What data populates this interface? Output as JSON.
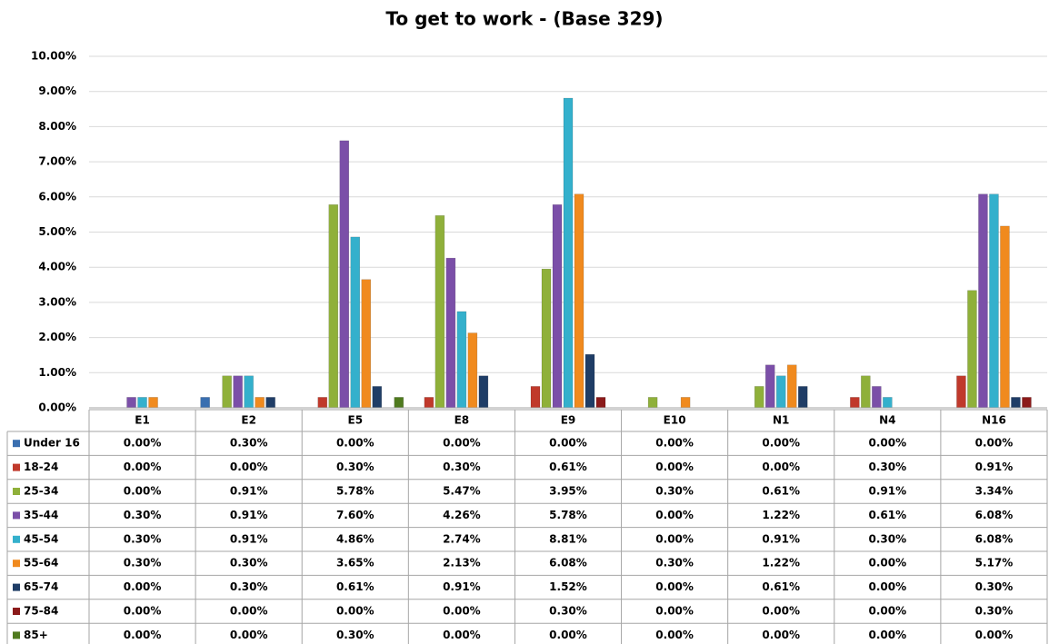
{
  "chart_data": {
    "type": "bar",
    "title": "To get to work - (Base 329)",
    "categories": [
      "E1",
      "E2",
      "E5",
      "E8",
      "E9",
      "E10",
      "N1",
      "N4",
      "N16"
    ],
    "ylim": [
      0,
      10
    ],
    "yticks": [
      {
        "value": 0,
        "label": "0.00%"
      },
      {
        "value": 1,
        "label": "1.00%"
      },
      {
        "value": 2,
        "label": "2.00%"
      },
      {
        "value": 3,
        "label": "3.00%"
      },
      {
        "value": 4,
        "label": "4.00%"
      },
      {
        "value": 5,
        "label": "5.00%"
      },
      {
        "value": 6,
        "label": "6.00%"
      },
      {
        "value": 7,
        "label": "7.00%"
      },
      {
        "value": 8,
        "label": "8.00%"
      },
      {
        "value": 9,
        "label": "9.00%"
      },
      {
        "value": 10,
        "label": "10.00%"
      }
    ],
    "grid": true,
    "series": [
      {
        "name": "Under 16",
        "color": "#3a6fb0",
        "values": [
          0,
          0.3,
          0,
          0,
          0,
          0,
          0,
          0,
          0
        ],
        "value_labels": [
          "0.00%",
          "0.30%",
          "0.00%",
          "0.00%",
          "0.00%",
          "0.00%",
          "0.00%",
          "0.00%",
          "0.00%"
        ]
      },
      {
        "name": "18-24",
        "color": "#c0392b",
        "values": [
          0,
          0,
          0.3,
          0.3,
          0.61,
          0,
          0,
          0.3,
          0.91
        ],
        "value_labels": [
          "0.00%",
          "0.00%",
          "0.30%",
          "0.30%",
          "0.61%",
          "0.00%",
          "0.00%",
          "0.30%",
          "0.91%"
        ]
      },
      {
        "name": "25-34",
        "color": "#8fb03a",
        "values": [
          0,
          0.91,
          5.78,
          5.47,
          3.95,
          0.3,
          0.61,
          0.91,
          3.34
        ],
        "value_labels": [
          "0.00%",
          "0.91%",
          "5.78%",
          "5.47%",
          "3.95%",
          "0.30%",
          "0.61%",
          "0.91%",
          "3.34%"
        ]
      },
      {
        "name": "35-44",
        "color": "#7b4fa8",
        "values": [
          0.3,
          0.91,
          7.6,
          4.26,
          5.78,
          0,
          1.22,
          0.61,
          6.08
        ],
        "value_labels": [
          "0.30%",
          "0.91%",
          "7.60%",
          "4.26%",
          "5.78%",
          "0.00%",
          "1.22%",
          "0.61%",
          "6.08%"
        ]
      },
      {
        "name": "45-54",
        "color": "#34b0cc",
        "values": [
          0.3,
          0.91,
          4.86,
          2.74,
          8.81,
          0,
          0.91,
          0.3,
          6.08
        ],
        "value_labels": [
          "0.30%",
          "0.91%",
          "4.86%",
          "2.74%",
          "8.81%",
          "0.00%",
          "0.91%",
          "0.30%",
          "6.08%"
        ]
      },
      {
        "name": "55-64",
        "color": "#f08a1e",
        "values": [
          0.3,
          0.3,
          3.65,
          2.13,
          6.08,
          0.3,
          1.22,
          0,
          5.17
        ],
        "value_labels": [
          "0.30%",
          "0.30%",
          "3.65%",
          "2.13%",
          "6.08%",
          "0.30%",
          "1.22%",
          "0.00%",
          "5.17%"
        ]
      },
      {
        "name": "65-74",
        "color": "#1f3d66",
        "values": [
          0,
          0.3,
          0.61,
          0.91,
          1.52,
          0,
          0.61,
          0,
          0.3
        ],
        "value_labels": [
          "0.00%",
          "0.30%",
          "0.61%",
          "0.91%",
          "1.52%",
          "0.00%",
          "0.61%",
          "0.00%",
          "0.30%"
        ]
      },
      {
        "name": "75-84",
        "color": "#8b1a1a",
        "values": [
          0,
          0,
          0,
          0,
          0.3,
          0,
          0,
          0,
          0.3
        ],
        "value_labels": [
          "0.00%",
          "0.00%",
          "0.00%",
          "0.00%",
          "0.30%",
          "0.00%",
          "0.00%",
          "0.00%",
          "0.30%"
        ]
      },
      {
        "name": "85+",
        "color": "#4f7a1e",
        "values": [
          0,
          0,
          0.3,
          0,
          0,
          0,
          0,
          0,
          0
        ],
        "value_labels": [
          "0.00%",
          "0.00%",
          "0.30%",
          "0.00%",
          "0.00%",
          "0.00%",
          "0.00%",
          "0.00%",
          "0.00%"
        ]
      }
    ]
  }
}
